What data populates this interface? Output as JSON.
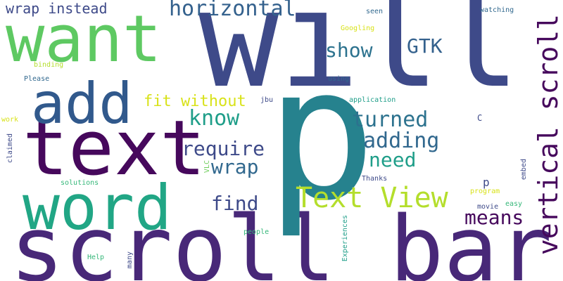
{
  "palette": {
    "dark_purple": "#46085c",
    "purple": "#482878",
    "indigo": "#3b4f8a",
    "blue": "#31688e",
    "teal": "#26828e",
    "teal_green": "#1f9e89",
    "green": "#35b779",
    "light_green": "#6dcd59",
    "lime": "#b4de2c",
    "yellow": "#d8e219"
  },
  "words": {
    "scroll_bar": "scroll bar",
    "will": "will",
    "p_big": "p",
    "text": "text",
    "want": "want",
    "word": "word",
    "add": "add",
    "vertical_scroll": "vertical scroll",
    "text_view": "Text View",
    "horizontal": "horizontal",
    "show": "show",
    "gtk": "GTK",
    "wrap_instead": "wrap instead",
    "fit_without": "fit without",
    "know": "know",
    "turned": "turned",
    "adding": "adding",
    "require": "require",
    "need": "need",
    "wrap": "wrap",
    "find": "find",
    "means": "means",
    "p_small": "p",
    "c": "C",
    "googling": "Googling",
    "watching": "watching",
    "seen": "seen",
    "binding": "binding",
    "please": "Please",
    "using": "using",
    "jbu": "jbu",
    "application": "application",
    "work": "work",
    "claimed": "claimed",
    "vlc": "VLC",
    "solutions": "solutions",
    "thanks": "Thanks",
    "embed": "embed",
    "program": "program",
    "easy": "easy",
    "movie": "movie",
    "people": "people",
    "experiences": "Experiences",
    "help": "Help",
    "many": "many"
  }
}
